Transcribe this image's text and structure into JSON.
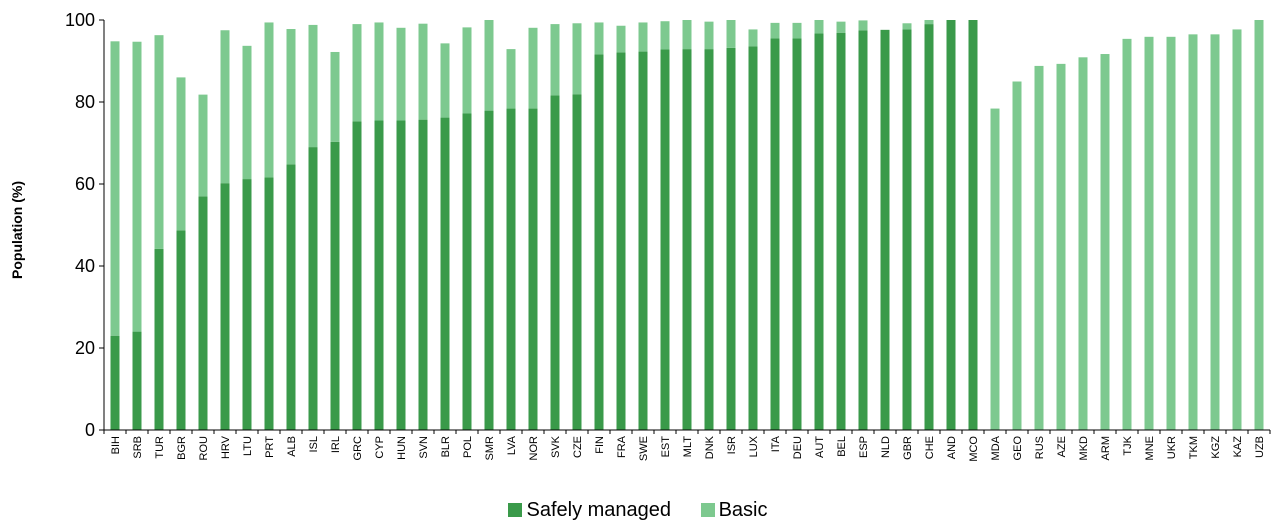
{
  "chart_data": {
    "type": "bar",
    "stacked": true,
    "ylabel": "Population (%)",
    "xlabel": "",
    "ylim": [
      0,
      100
    ],
    "yticks": [
      0,
      20,
      40,
      60,
      80,
      100
    ],
    "grid": false,
    "legend_position": "bottom",
    "categories": [
      "BIH",
      "SRB",
      "TUR",
      "BGR",
      "ROU",
      "HRV",
      "LTU",
      "PRT",
      "ALB",
      "ISL",
      "IRL",
      "GRC",
      "CYP",
      "HUN",
      "SVN",
      "BLR",
      "POL",
      "SMR",
      "LVA",
      "NOR",
      "SVK",
      "CZE",
      "FIN",
      "FRA",
      "SWE",
      "EST",
      "MLT",
      "DNK",
      "ISR",
      "LUX",
      "ITA",
      "DEU",
      "AUT",
      "BEL",
      "ESP",
      "NLD",
      "GBR",
      "CHE",
      "AND",
      "MCO",
      "MDA",
      "GEO",
      "RUS",
      "AZE",
      "MKD",
      "ARM",
      "TJK",
      "MNE",
      "UKR",
      "TKM",
      "KGZ",
      "KAZ",
      "UZB"
    ],
    "series": [
      {
        "name": "Safely managed",
        "color": "#3a9a4a",
        "values": [
          23,
          24,
          44.2,
          48.7,
          57,
          60.2,
          61.2,
          61.6,
          64.8,
          69,
          70.3,
          75.3,
          75.5,
          75.5,
          75.7,
          76.2,
          77.2,
          77.9,
          78.4,
          78.4,
          81.6,
          81.9,
          91.6,
          92.1,
          92.3,
          92.8,
          92.9,
          92.9,
          93.2,
          93.6,
          95.5,
          95.5,
          96.7,
          96.9,
          97.5,
          97.6,
          97.7,
          99,
          100,
          100,
          0,
          0,
          0,
          0,
          0,
          0,
          0,
          0,
          0,
          0,
          0,
          0,
          0
        ]
      },
      {
        "name": "Basic",
        "color": "#7dc98f",
        "values": [
          71.8,
          70.7,
          52.1,
          37.3,
          24.8,
          37.3,
          32.5,
          37.8,
          33,
          29.8,
          21.9,
          23.7,
          23.9,
          22.6,
          23.4,
          18.1,
          21,
          22.1,
          14.5,
          19.7,
          17.4,
          17.3,
          7.8,
          6.5,
          7.1,
          6.9,
          7.1,
          6.7,
          6.8,
          4.1,
          3.8,
          3.8,
          3.3,
          2.7,
          2.4,
          0,
          1.5,
          1,
          0,
          0,
          78.4,
          85,
          88.8,
          89.3,
          90.9,
          91.7,
          95.4,
          95.9,
          95.9,
          96.5,
          96.5,
          97.7,
          100
        ]
      }
    ]
  }
}
